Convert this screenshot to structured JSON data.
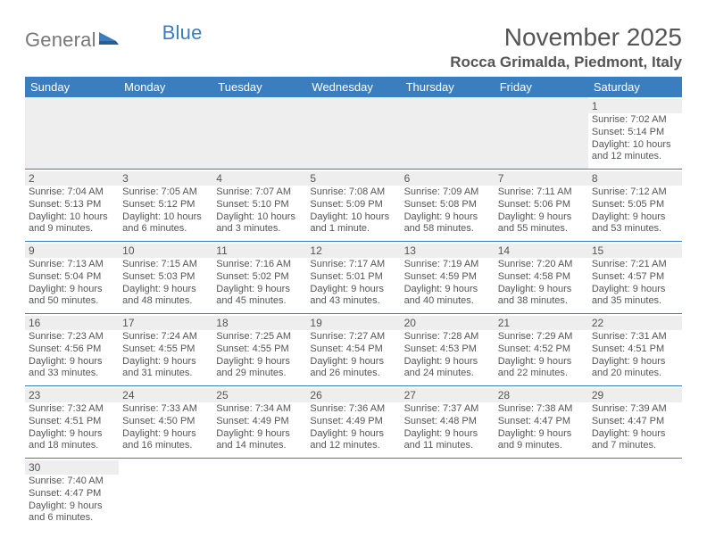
{
  "brand": {
    "part1": "General",
    "part2": "Blue"
  },
  "title": "November 2025",
  "location": "Rocca Grimalda, Piedmont, Italy",
  "weekdays": [
    "Sunday",
    "Monday",
    "Tuesday",
    "Wednesday",
    "Thursday",
    "Friday",
    "Saturday"
  ],
  "colors": {
    "header_bg": "#3a7ebf",
    "header_text": "#ffffff",
    "day_shade": "#eeeeee",
    "border": "#3a7ebf",
    "text": "#555555"
  },
  "typography": {
    "title_fontsize": 28,
    "location_fontsize": 17,
    "weekday_fontsize": 13,
    "cell_fontsize": 11
  },
  "weeks": [
    [
      null,
      null,
      null,
      null,
      null,
      null,
      {
        "day": "1",
        "sunrise": "Sunrise: 7:02 AM",
        "sunset": "Sunset: 5:14 PM",
        "daylight": "Daylight: 10 hours and 12 minutes."
      }
    ],
    [
      {
        "day": "2",
        "sunrise": "Sunrise: 7:04 AM",
        "sunset": "Sunset: 5:13 PM",
        "daylight": "Daylight: 10 hours and 9 minutes."
      },
      {
        "day": "3",
        "sunrise": "Sunrise: 7:05 AM",
        "sunset": "Sunset: 5:12 PM",
        "daylight": "Daylight: 10 hours and 6 minutes."
      },
      {
        "day": "4",
        "sunrise": "Sunrise: 7:07 AM",
        "sunset": "Sunset: 5:10 PM",
        "daylight": "Daylight: 10 hours and 3 minutes."
      },
      {
        "day": "5",
        "sunrise": "Sunrise: 7:08 AM",
        "sunset": "Sunset: 5:09 PM",
        "daylight": "Daylight: 10 hours and 1 minute."
      },
      {
        "day": "6",
        "sunrise": "Sunrise: 7:09 AM",
        "sunset": "Sunset: 5:08 PM",
        "daylight": "Daylight: 9 hours and 58 minutes."
      },
      {
        "day": "7",
        "sunrise": "Sunrise: 7:11 AM",
        "sunset": "Sunset: 5:06 PM",
        "daylight": "Daylight: 9 hours and 55 minutes."
      },
      {
        "day": "8",
        "sunrise": "Sunrise: 7:12 AM",
        "sunset": "Sunset: 5:05 PM",
        "daylight": "Daylight: 9 hours and 53 minutes."
      }
    ],
    [
      {
        "day": "9",
        "sunrise": "Sunrise: 7:13 AM",
        "sunset": "Sunset: 5:04 PM",
        "daylight": "Daylight: 9 hours and 50 minutes."
      },
      {
        "day": "10",
        "sunrise": "Sunrise: 7:15 AM",
        "sunset": "Sunset: 5:03 PM",
        "daylight": "Daylight: 9 hours and 48 minutes."
      },
      {
        "day": "11",
        "sunrise": "Sunrise: 7:16 AM",
        "sunset": "Sunset: 5:02 PM",
        "daylight": "Daylight: 9 hours and 45 minutes."
      },
      {
        "day": "12",
        "sunrise": "Sunrise: 7:17 AM",
        "sunset": "Sunset: 5:01 PM",
        "daylight": "Daylight: 9 hours and 43 minutes."
      },
      {
        "day": "13",
        "sunrise": "Sunrise: 7:19 AM",
        "sunset": "Sunset: 4:59 PM",
        "daylight": "Daylight: 9 hours and 40 minutes."
      },
      {
        "day": "14",
        "sunrise": "Sunrise: 7:20 AM",
        "sunset": "Sunset: 4:58 PM",
        "daylight": "Daylight: 9 hours and 38 minutes."
      },
      {
        "day": "15",
        "sunrise": "Sunrise: 7:21 AM",
        "sunset": "Sunset: 4:57 PM",
        "daylight": "Daylight: 9 hours and 35 minutes."
      }
    ],
    [
      {
        "day": "16",
        "sunrise": "Sunrise: 7:23 AM",
        "sunset": "Sunset: 4:56 PM",
        "daylight": "Daylight: 9 hours and 33 minutes."
      },
      {
        "day": "17",
        "sunrise": "Sunrise: 7:24 AM",
        "sunset": "Sunset: 4:55 PM",
        "daylight": "Daylight: 9 hours and 31 minutes."
      },
      {
        "day": "18",
        "sunrise": "Sunrise: 7:25 AM",
        "sunset": "Sunset: 4:55 PM",
        "daylight": "Daylight: 9 hours and 29 minutes."
      },
      {
        "day": "19",
        "sunrise": "Sunrise: 7:27 AM",
        "sunset": "Sunset: 4:54 PM",
        "daylight": "Daylight: 9 hours and 26 minutes."
      },
      {
        "day": "20",
        "sunrise": "Sunrise: 7:28 AM",
        "sunset": "Sunset: 4:53 PM",
        "daylight": "Daylight: 9 hours and 24 minutes."
      },
      {
        "day": "21",
        "sunrise": "Sunrise: 7:29 AM",
        "sunset": "Sunset: 4:52 PM",
        "daylight": "Daylight: 9 hours and 22 minutes."
      },
      {
        "day": "22",
        "sunrise": "Sunrise: 7:31 AM",
        "sunset": "Sunset: 4:51 PM",
        "daylight": "Daylight: 9 hours and 20 minutes."
      }
    ],
    [
      {
        "day": "23",
        "sunrise": "Sunrise: 7:32 AM",
        "sunset": "Sunset: 4:51 PM",
        "daylight": "Daylight: 9 hours and 18 minutes."
      },
      {
        "day": "24",
        "sunrise": "Sunrise: 7:33 AM",
        "sunset": "Sunset: 4:50 PM",
        "daylight": "Daylight: 9 hours and 16 minutes."
      },
      {
        "day": "25",
        "sunrise": "Sunrise: 7:34 AM",
        "sunset": "Sunset: 4:49 PM",
        "daylight": "Daylight: 9 hours and 14 minutes."
      },
      {
        "day": "26",
        "sunrise": "Sunrise: 7:36 AM",
        "sunset": "Sunset: 4:49 PM",
        "daylight": "Daylight: 9 hours and 12 minutes."
      },
      {
        "day": "27",
        "sunrise": "Sunrise: 7:37 AM",
        "sunset": "Sunset: 4:48 PM",
        "daylight": "Daylight: 9 hours and 11 minutes."
      },
      {
        "day": "28",
        "sunrise": "Sunrise: 7:38 AM",
        "sunset": "Sunset: 4:47 PM",
        "daylight": "Daylight: 9 hours and 9 minutes."
      },
      {
        "day": "29",
        "sunrise": "Sunrise: 7:39 AM",
        "sunset": "Sunset: 4:47 PM",
        "daylight": "Daylight: 9 hours and 7 minutes."
      }
    ],
    [
      {
        "day": "30",
        "sunrise": "Sunrise: 7:40 AM",
        "sunset": "Sunset: 4:47 PM",
        "daylight": "Daylight: 9 hours and 6 minutes."
      },
      null,
      null,
      null,
      null,
      null,
      null
    ]
  ]
}
